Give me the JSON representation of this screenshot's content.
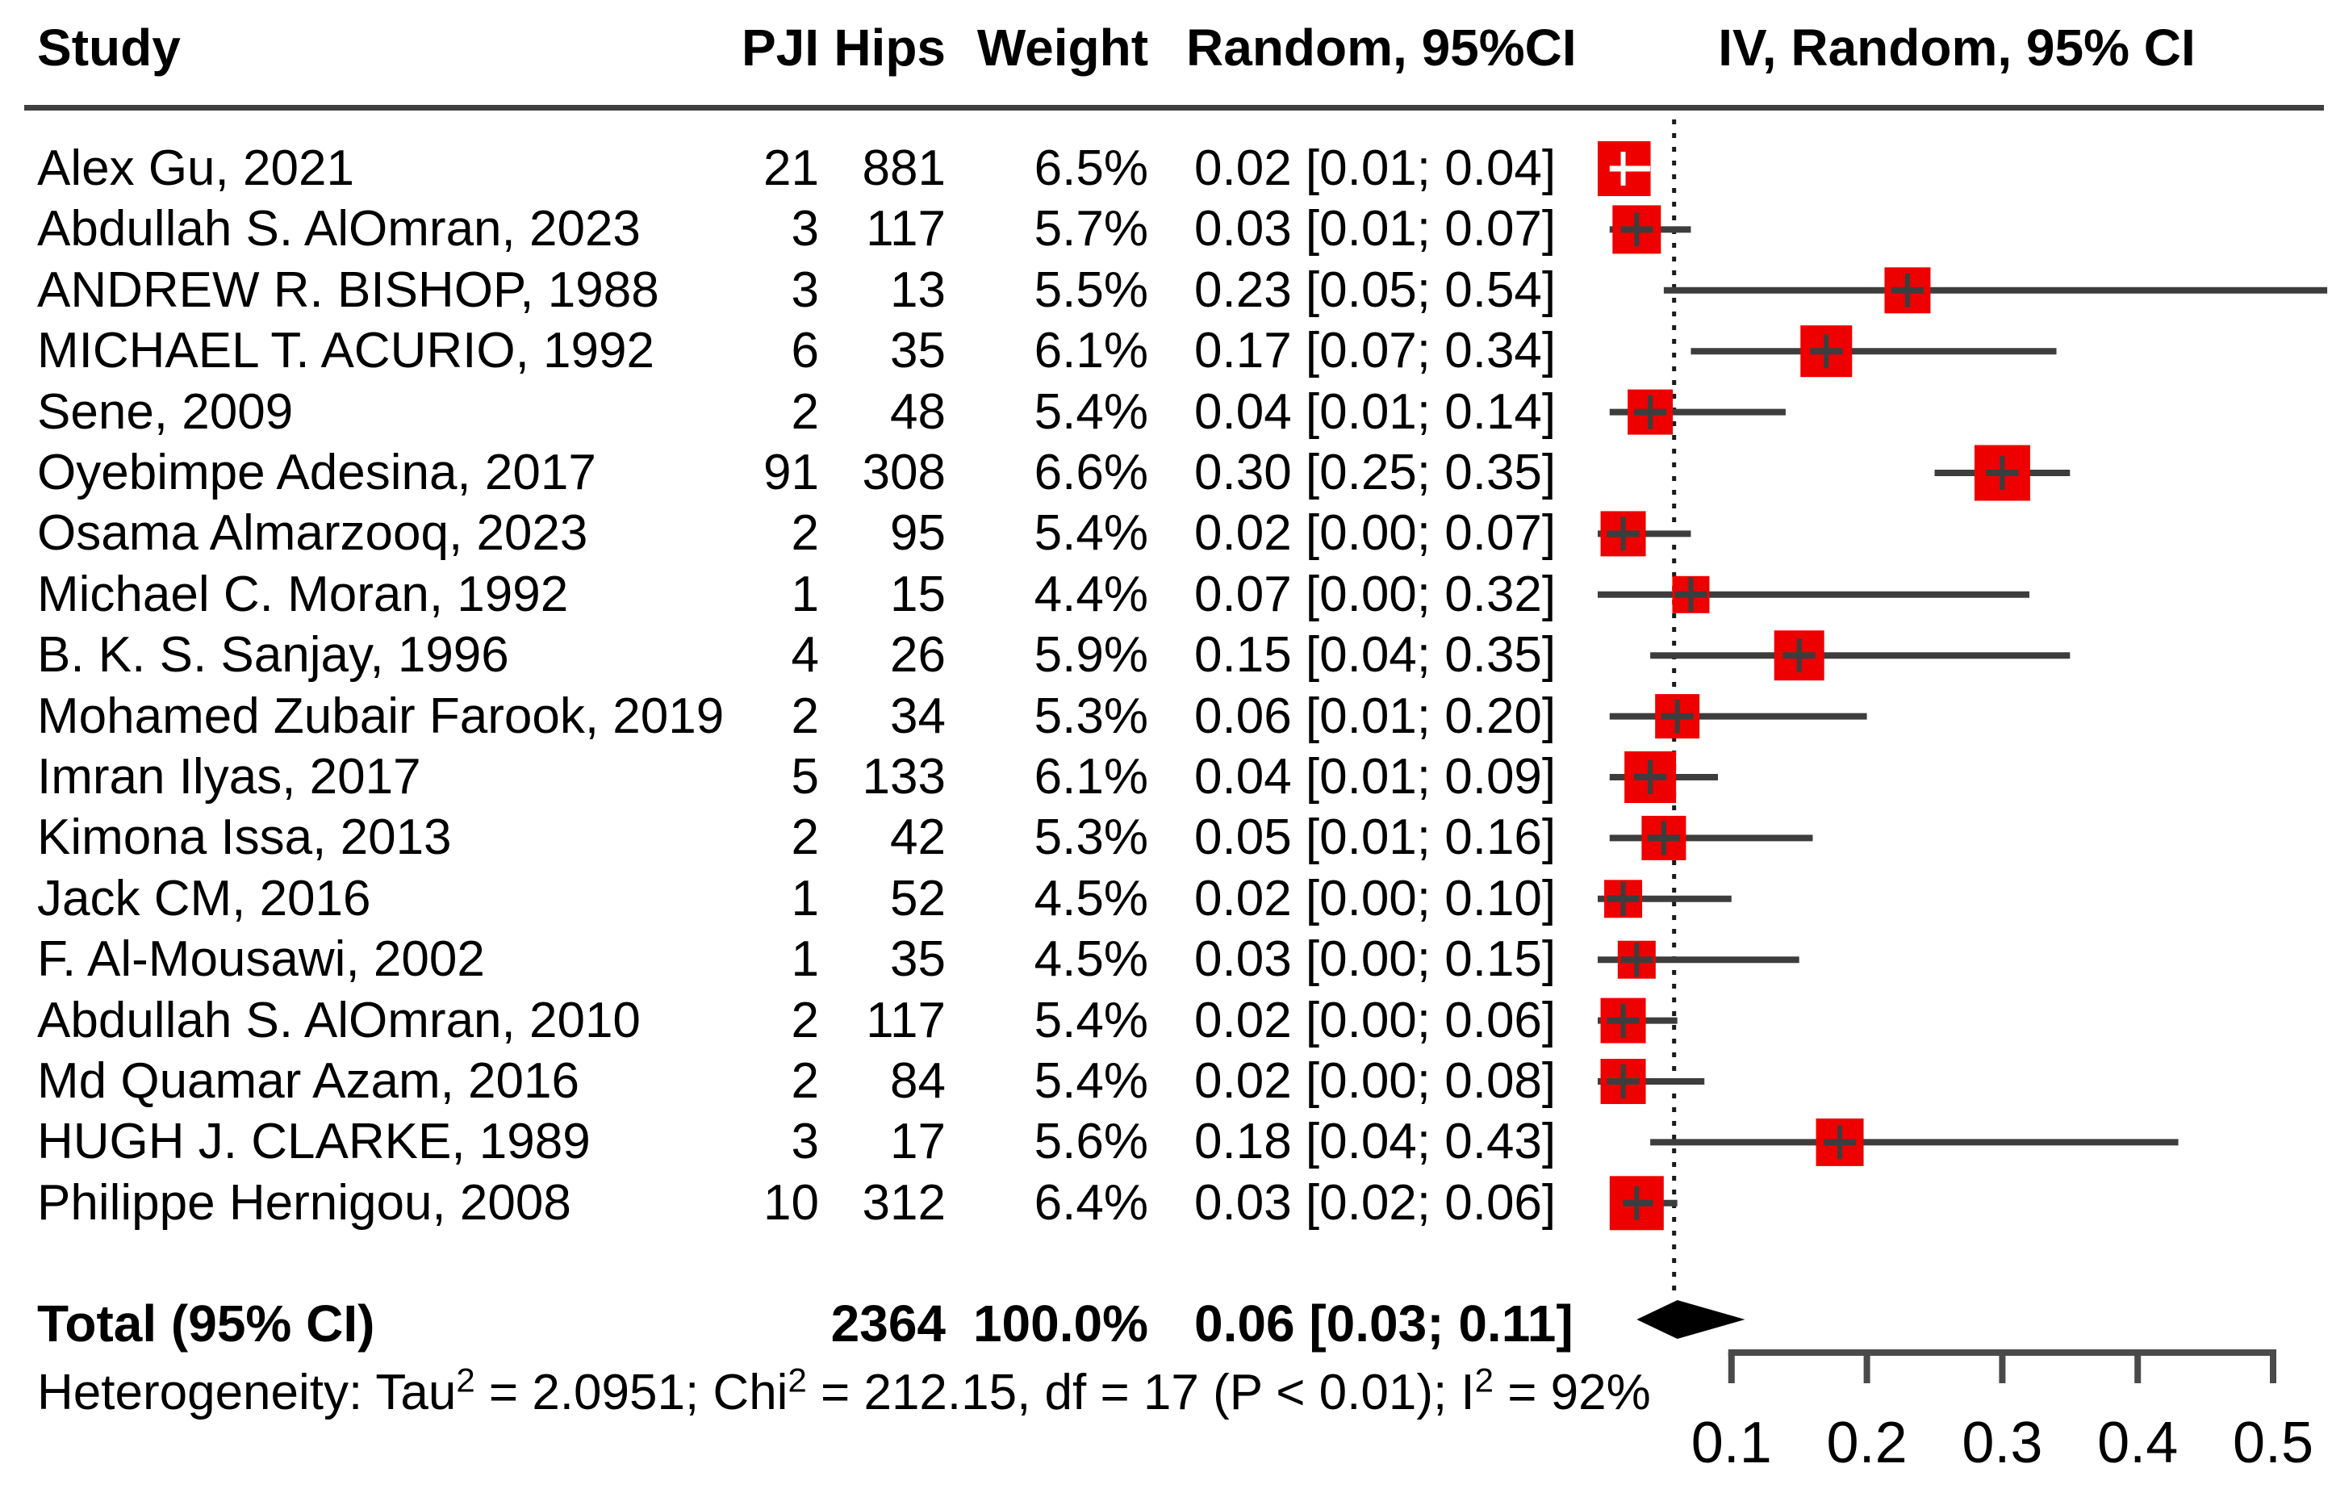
{
  "chart_data": {
    "type": "scatter",
    "subtype": "forest-plot",
    "title": "",
    "columns": {
      "study": "Study",
      "pji": "PJI",
      "hips": "Hips",
      "weight": "Weight",
      "random_ci": "Random, 95%CI",
      "iv_random_ci": "IV, Random, 95% CI"
    },
    "studies": [
      {
        "name": "Alex Gu, 2021",
        "pji": "21",
        "hips": "881",
        "weight": "6.5%",
        "weight_value": 6.5,
        "estimate": 0.02,
        "ci_low": 0.01,
        "ci_high": 0.04,
        "ci_text": "0.02 [0.01; 0.04]",
        "ci_within_square": true
      },
      {
        "name": "Abdullah S. AlOmran, 2023",
        "pji": "3",
        "hips": "117",
        "weight": "5.7%",
        "weight_value": 5.7,
        "estimate": 0.03,
        "ci_low": 0.01,
        "ci_high": 0.07,
        "ci_text": "0.03 [0.01; 0.07]",
        "ci_within_square": false
      },
      {
        "name": "ANDREW R. BISHOP, 1988",
        "pji": "3",
        "hips": "13",
        "weight": "5.5%",
        "weight_value": 5.5,
        "estimate": 0.23,
        "ci_low": 0.05,
        "ci_high": 0.54,
        "ci_text": "0.23 [0.05; 0.54]",
        "ci_within_square": false
      },
      {
        "name": "MICHAEL T. ACURIO, 1992",
        "pji": "6",
        "hips": "35",
        "weight": "6.1%",
        "weight_value": 6.1,
        "estimate": 0.17,
        "ci_low": 0.07,
        "ci_high": 0.34,
        "ci_text": "0.17 [0.07; 0.34]",
        "ci_within_square": false
      },
      {
        "name": "Sene, 2009",
        "pji": "2",
        "hips": "48",
        "weight": "5.4%",
        "weight_value": 5.4,
        "estimate": 0.04,
        "ci_low": 0.01,
        "ci_high": 0.14,
        "ci_text": "0.04 [0.01; 0.14]",
        "ci_within_square": false
      },
      {
        "name": "Oyebimpe Adesina, 2017",
        "pji": "91",
        "hips": "308",
        "weight": "6.6%",
        "weight_value": 6.6,
        "estimate": 0.3,
        "ci_low": 0.25,
        "ci_high": 0.35,
        "ci_text": "0.30 [0.25; 0.35]",
        "ci_within_square": false
      },
      {
        "name": "Osama Almarzooq, 2023",
        "pji": "2",
        "hips": "95",
        "weight": "5.4%",
        "weight_value": 5.4,
        "estimate": 0.02,
        "ci_low": 0.0,
        "ci_high": 0.07,
        "ci_text": "0.02 [0.00; 0.07]",
        "ci_within_square": false
      },
      {
        "name": "Michael C. Moran, 1992",
        "pji": "1",
        "hips": "15",
        "weight": "4.4%",
        "weight_value": 4.4,
        "estimate": 0.07,
        "ci_low": 0.0,
        "ci_high": 0.32,
        "ci_text": "0.07 [0.00; 0.32]",
        "ci_within_square": false
      },
      {
        "name": "B. K. S. Sanjay, 1996",
        "pji": "4",
        "hips": "26",
        "weight": "5.9%",
        "weight_value": 5.9,
        "estimate": 0.15,
        "ci_low": 0.04,
        "ci_high": 0.35,
        "ci_text": "0.15 [0.04; 0.35]",
        "ci_within_square": false
      },
      {
        "name": "Mohamed Zubair Farook, 2019",
        "pji": "2",
        "hips": "34",
        "weight": "5.3%",
        "weight_value": 5.3,
        "estimate": 0.06,
        "ci_low": 0.01,
        "ci_high": 0.2,
        "ci_text": "0.06 [0.01; 0.20]",
        "ci_within_square": false
      },
      {
        "name": "Imran Ilyas, 2017",
        "pji": "5",
        "hips": "133",
        "weight": "6.1%",
        "weight_value": 6.1,
        "estimate": 0.04,
        "ci_low": 0.01,
        "ci_high": 0.09,
        "ci_text": "0.04 [0.01; 0.09]",
        "ci_within_square": false
      },
      {
        "name": "Kimona Issa, 2013",
        "pji": "2",
        "hips": "42",
        "weight": "5.3%",
        "weight_value": 5.3,
        "estimate": 0.05,
        "ci_low": 0.01,
        "ci_high": 0.16,
        "ci_text": "0.05 [0.01; 0.16]",
        "ci_within_square": false
      },
      {
        "name": "Jack CM, 2016",
        "pji": "1",
        "hips": "52",
        "weight": "4.5%",
        "weight_value": 4.5,
        "estimate": 0.02,
        "ci_low": 0.0,
        "ci_high": 0.1,
        "ci_text": "0.02 [0.00; 0.10]",
        "ci_within_square": false
      },
      {
        "name": "F. Al-Mousawi, 2002",
        "pji": "1",
        "hips": "35",
        "weight": "4.5%",
        "weight_value": 4.5,
        "estimate": 0.03,
        "ci_low": 0.0,
        "ci_high": 0.15,
        "ci_text": "0.03 [0.00; 0.15]",
        "ci_within_square": false
      },
      {
        "name": "Abdullah S. AlOmran, 2010",
        "pji": "2",
        "hips": "117",
        "weight": "5.4%",
        "weight_value": 5.4,
        "estimate": 0.02,
        "ci_low": 0.0,
        "ci_high": 0.06,
        "ci_text": "0.02 [0.00; 0.06]",
        "ci_within_square": false
      },
      {
        "name": "Md Quamar Azam, 2016",
        "pji": "2",
        "hips": "84",
        "weight": "5.4%",
        "weight_value": 5.4,
        "estimate": 0.02,
        "ci_low": 0.0,
        "ci_high": 0.08,
        "ci_text": "0.02 [0.00; 0.08]",
        "ci_within_square": false
      },
      {
        "name": "HUGH J. CLARKE, 1989",
        "pji": "3",
        "hips": "17",
        "weight": "5.6%",
        "weight_value": 5.6,
        "estimate": 0.18,
        "ci_low": 0.04,
        "ci_high": 0.43,
        "ci_text": "0.18 [0.04; 0.43]",
        "ci_within_square": false
      },
      {
        "name": "Philippe Hernigou, 2008",
        "pji": "10",
        "hips": "312",
        "weight": "6.4%",
        "weight_value": 6.4,
        "estimate": 0.03,
        "ci_low": 0.02,
        "ci_high": 0.06,
        "ci_text": "0.03 [0.02; 0.06]",
        "ci_within_square": false
      }
    ],
    "total": {
      "label": "Total (95% CI)",
      "hips": "2364",
      "weight": "100.0%",
      "ci_text": "0.06 [0.03; 0.11]",
      "estimate": 0.06,
      "ci_low": 0.03,
      "ci_high": 0.11
    },
    "heterogeneity": {
      "parts": [
        {
          "text": "Heterogeneity: Tau",
          "sup": false
        },
        {
          "text": "2",
          "sup": true
        },
        {
          "text": " = 2.0951; Chi",
          "sup": false
        },
        {
          "text": "2",
          "sup": true
        },
        {
          "text": " = 212.15, df = 17 (P < 0.01); I",
          "sup": false
        },
        {
          "text": "2",
          "sup": true
        },
        {
          "text": " = 92%",
          "sup": false
        }
      ]
    },
    "x_axis": {
      "ticks": [
        0.1,
        0.2,
        0.3,
        0.4,
        0.5
      ],
      "tick_labels": [
        "0.1",
        "0.2",
        "0.3",
        "0.4",
        "0.5"
      ],
      "range_shown": [
        0.1,
        0.5
      ],
      "reference_line_value": 0.06,
      "grid": false
    },
    "legend_position": "none",
    "colors": {
      "square": "#ee0000",
      "ci_line": "#3d3d3d",
      "diamond": "#000000",
      "axis": "#4a4a4a",
      "reference_line": "#1a1a1a",
      "text": "#000000",
      "background": "#ffffff",
      "inner_marker_row1": "#ffffff"
    }
  }
}
